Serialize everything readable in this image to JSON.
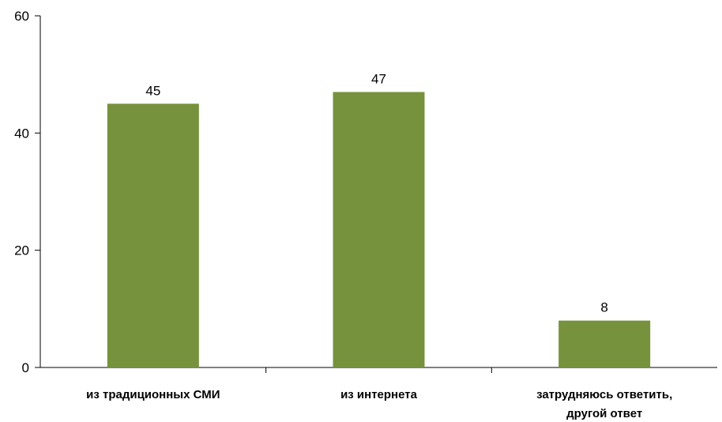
{
  "chart_data": {
    "type": "bar",
    "title": "",
    "xlabel": "",
    "ylabel": "",
    "categories": [
      [
        "из традиционных СМИ"
      ],
      [
        "из интернета"
      ],
      [
        "затрудняюсь ответить,",
        "другой ответ"
      ]
    ],
    "values": [
      45,
      47,
      8
    ],
    "ylim": [
      0,
      60
    ],
    "yticks": [
      0,
      20,
      40,
      60
    ],
    "grid": false,
    "legend": "none",
    "bar_color": "#76923c"
  }
}
